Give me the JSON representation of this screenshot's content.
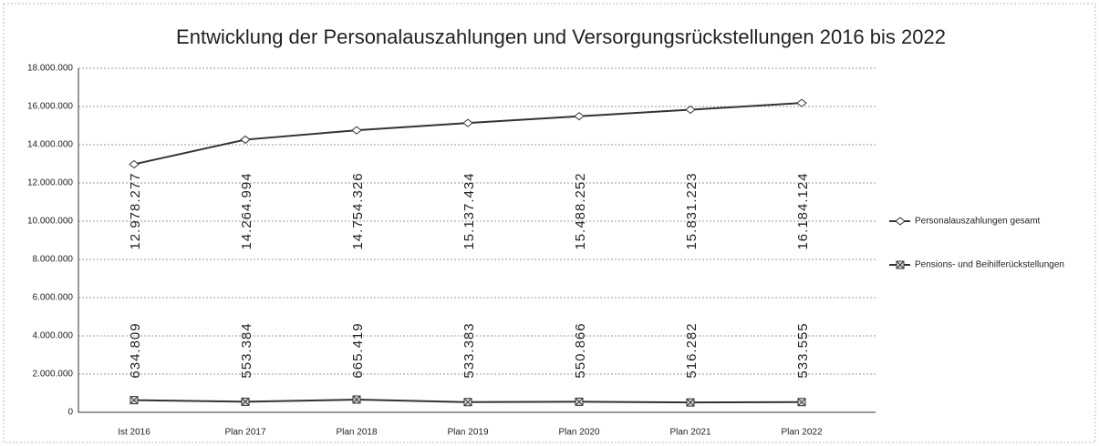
{
  "chart_data": {
    "type": "line",
    "title": "Entwicklung der Personalauszahlungen und Versorgungsrückstellungen 2016 bis 2022",
    "categories": [
      "Ist 2016",
      "Plan 2017",
      "Plan 2018",
      "Plan 2019",
      "Plan 2020",
      "Plan 2021",
      "Plan 2022"
    ],
    "series": [
      {
        "name": "Personalauszahlungen gesamt",
        "color": "#333333",
        "values": [
          12978277,
          14264994,
          14754326,
          15137434,
          15488252,
          15831223,
          16184124
        ],
        "value_labels": [
          "12.978.277",
          "14.264.994",
          "14.754.326",
          "15.137.434",
          "15.488.252",
          "15.831.223",
          "16.184.124"
        ]
      },
      {
        "name": "Pensions- und Beihilferückstellungen",
        "color": "#333333",
        "values": [
          634809,
          553384,
          665419,
          533383,
          550866,
          516282,
          533555
        ],
        "value_labels": [
          "634.809",
          "553.384",
          "665.419",
          "533.383",
          "550.866",
          "516.282",
          "533.555"
        ]
      }
    ],
    "ylim": [
      0,
      18000000
    ],
    "yticks": [
      0,
      {
        "value": 2000000,
        "label": "2.000.000"
      },
      {
        "value": 4000000,
        "label": "4.000.000"
      },
      {
        "value": 6000000,
        "label": "6.000.000"
      },
      {
        "value": 8000000,
        "label": "8.000.000"
      },
      {
        "value": 10000000,
        "label": "10.000.000"
      },
      {
        "value": 12000000,
        "label": "12.000.000"
      },
      {
        "value": 14000000,
        "label": "14.000.000"
      },
      {
        "value": 16000000,
        "label": "16.000.000"
      },
      {
        "value": 18000000,
        "label": "18.000.000"
      }
    ],
    "grid": true
  }
}
